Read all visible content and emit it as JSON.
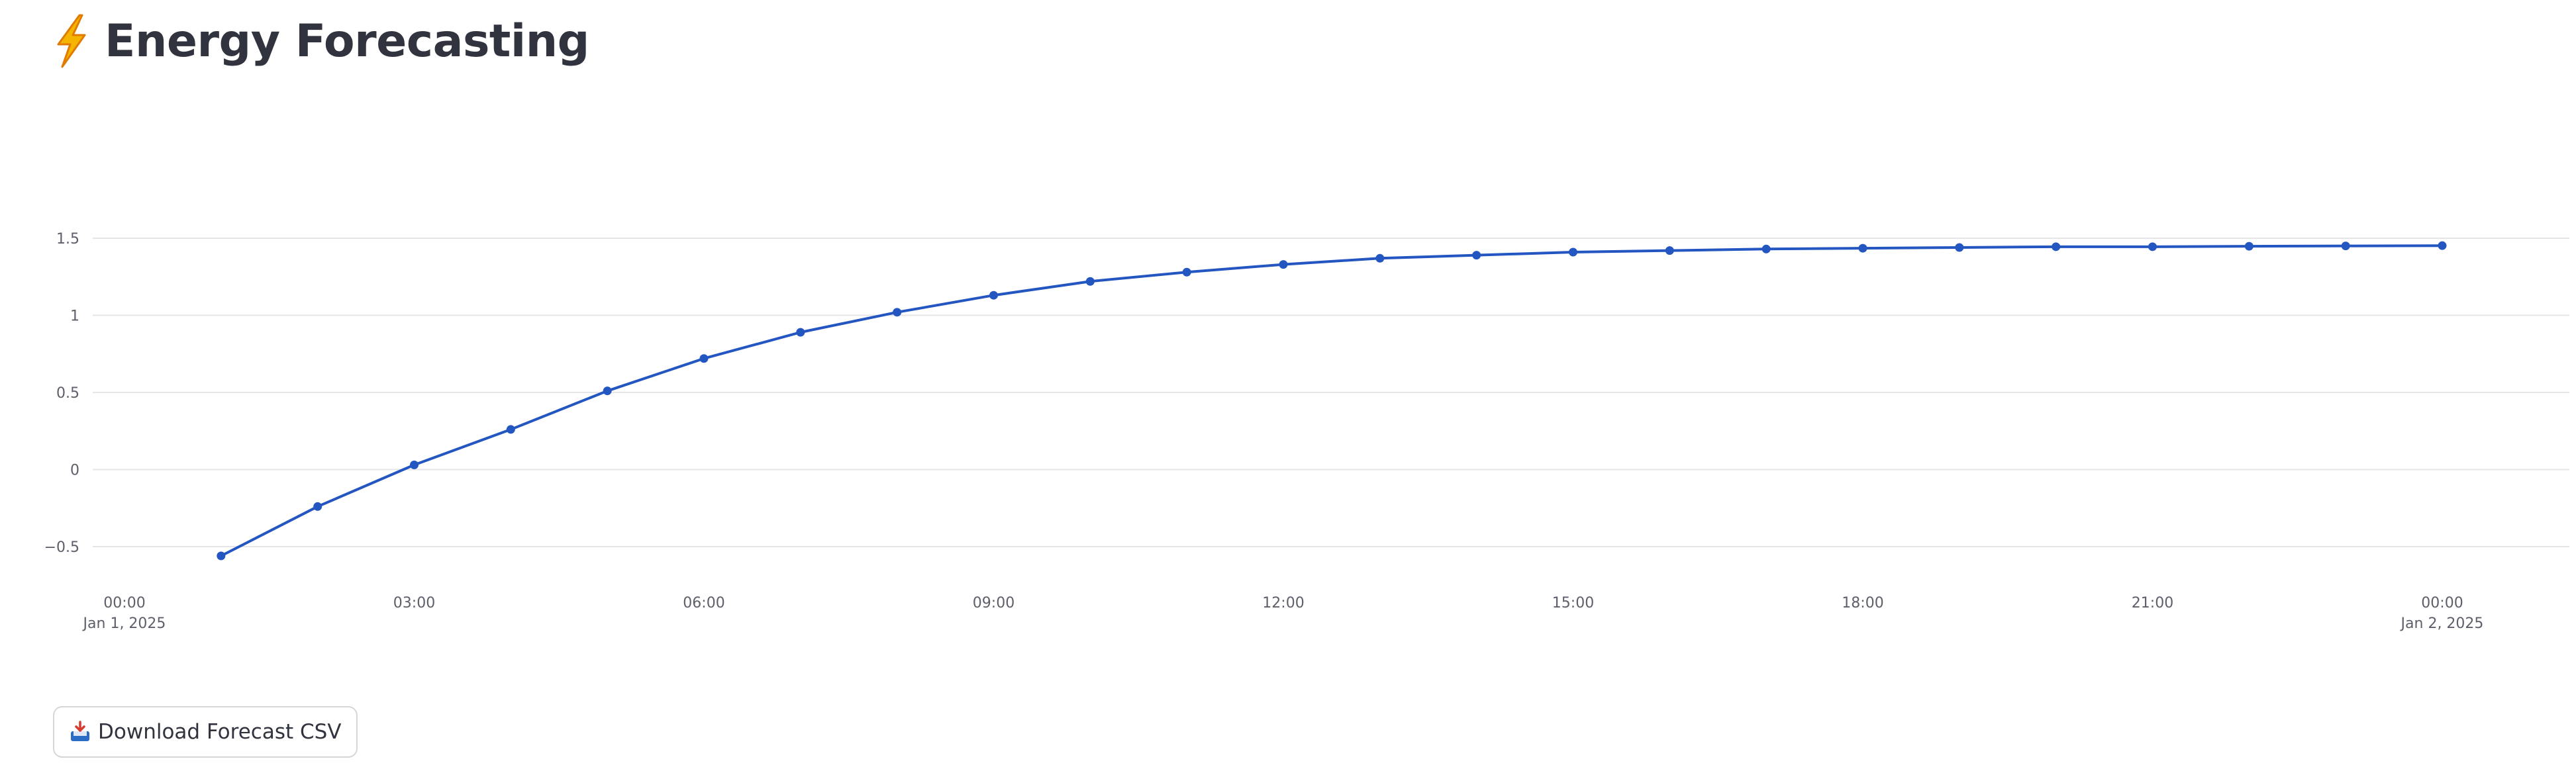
{
  "header": {
    "title": "Energy Forecasting",
    "icon": "lightning-bolt-icon"
  },
  "download": {
    "label": "Download Forecast CSV",
    "icon": "inbox-tray-icon"
  },
  "colors": {
    "line": "#2356c0",
    "grid": "#e6e6e9",
    "bolt_fill": "#f5b400",
    "bolt_stroke": "#e07b00"
  },
  "chart_data": {
    "type": "line",
    "title": "",
    "xlabel": "",
    "ylabel": "",
    "x": [
      "2025-01-01 01:00",
      "2025-01-01 02:00",
      "2025-01-01 03:00",
      "2025-01-01 04:00",
      "2025-01-01 05:00",
      "2025-01-01 06:00",
      "2025-01-01 07:00",
      "2025-01-01 08:00",
      "2025-01-01 09:00",
      "2025-01-01 10:00",
      "2025-01-01 11:00",
      "2025-01-01 12:00",
      "2025-01-01 13:00",
      "2025-01-01 14:00",
      "2025-01-01 15:00",
      "2025-01-01 16:00",
      "2025-01-01 17:00",
      "2025-01-01 18:00",
      "2025-01-01 19:00",
      "2025-01-01 20:00",
      "2025-01-01 21:00",
      "2025-01-01 22:00",
      "2025-01-01 23:00",
      "2025-01-02 00:00"
    ],
    "series": [
      {
        "values": [
          -0.56,
          -0.24,
          0.03,
          0.26,
          0.51,
          0.72,
          0.89,
          1.02,
          1.13,
          1.22,
          1.28,
          1.33,
          1.37,
          1.39,
          1.41,
          1.42,
          1.43,
          1.435,
          1.44,
          1.445,
          1.445,
          1.448,
          1.45,
          1.452
        ]
      }
    ],
    "x_range": [
      "2025-01-01 00:00",
      "2025-01-02 00:00"
    ],
    "ylim": [
      -0.65,
      1.62
    ],
    "y_ticks": [
      {
        "value": 1.5,
        "label": "1.5"
      },
      {
        "value": 1,
        "label": "1"
      },
      {
        "value": 0.5,
        "label": "0.5"
      },
      {
        "value": 0,
        "label": "0"
      },
      {
        "value": -0.5,
        "label": "−0.5"
      }
    ],
    "x_ticks": [
      {
        "hour": 0,
        "label": "00:00",
        "sublabel": "Jan 1, 2025"
      },
      {
        "hour": 3,
        "label": "03:00",
        "sublabel": ""
      },
      {
        "hour": 6,
        "label": "06:00",
        "sublabel": ""
      },
      {
        "hour": 9,
        "label": "09:00",
        "sublabel": ""
      },
      {
        "hour": 12,
        "label": "12:00",
        "sublabel": ""
      },
      {
        "hour": 15,
        "label": "15:00",
        "sublabel": ""
      },
      {
        "hour": 18,
        "label": "18:00",
        "sublabel": ""
      },
      {
        "hour": 21,
        "label": "21:00",
        "sublabel": ""
      },
      {
        "hour": 24,
        "label": "00:00",
        "sublabel": "Jan 2, 2025"
      }
    ],
    "grid": true,
    "legend": "none"
  }
}
